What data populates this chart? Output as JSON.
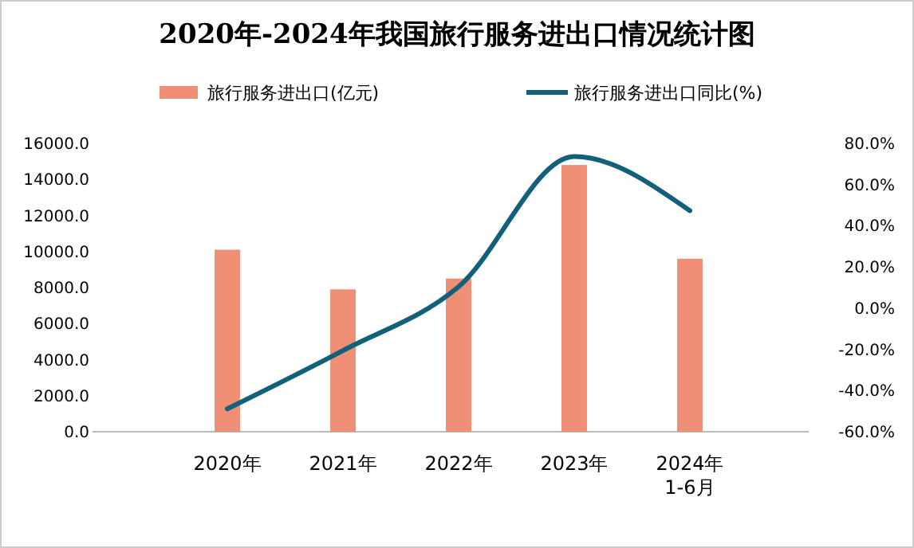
{
  "chart_data": {
    "type": "bar",
    "title": "2020年-2024年我国旅行服务进出口情况统计图",
    "categories": [
      "2020年",
      "2021年",
      "2022年",
      "2023年",
      "2024年\n1-6月"
    ],
    "series": [
      {
        "name": "旅行服务进出口(亿元)",
        "color": "#ee8f76",
        "values": [
          10100,
          7900,
          8500,
          14800,
          9600
        ]
      },
      {
        "name": "旅行服务进出口同比(%)",
        "type": "line",
        "axis": "y2",
        "color": "#12607a",
        "values": [
          -48.9,
          -20.6,
          10.4,
          73.6,
          47.3
        ]
      }
    ],
    "ylim": [
      0,
      16000
    ],
    "yticks": [
      {
        "value": 0,
        "label": "0.0"
      },
      {
        "value": 2000,
        "label": "2000.0"
      },
      {
        "value": 4000,
        "label": "4000.0"
      },
      {
        "value": 6000,
        "label": "6000.0"
      },
      {
        "value": 8000,
        "label": "8000.0"
      },
      {
        "value": 10000,
        "label": "10000.0"
      },
      {
        "value": 12000,
        "label": "12000.0"
      },
      {
        "value": 14000,
        "label": "14000.0"
      },
      {
        "value": 16000,
        "label": "16000.0"
      }
    ],
    "y2lim": [
      -60,
      80
    ],
    "y2ticks": [
      {
        "value": -60,
        "label": "-60.0%"
      },
      {
        "value": -40,
        "label": "-40.0%"
      },
      {
        "value": -20,
        "label": "-20.0%"
      },
      {
        "value": 0,
        "label": "0.0%"
      },
      {
        "value": 20,
        "label": "20.0%"
      },
      {
        "value": 40,
        "label": "40.0%"
      },
      {
        "value": 60,
        "label": "60.0%"
      },
      {
        "value": 80,
        "label": "80.0%"
      }
    ],
    "legend": "top",
    "marker": "none"
  }
}
